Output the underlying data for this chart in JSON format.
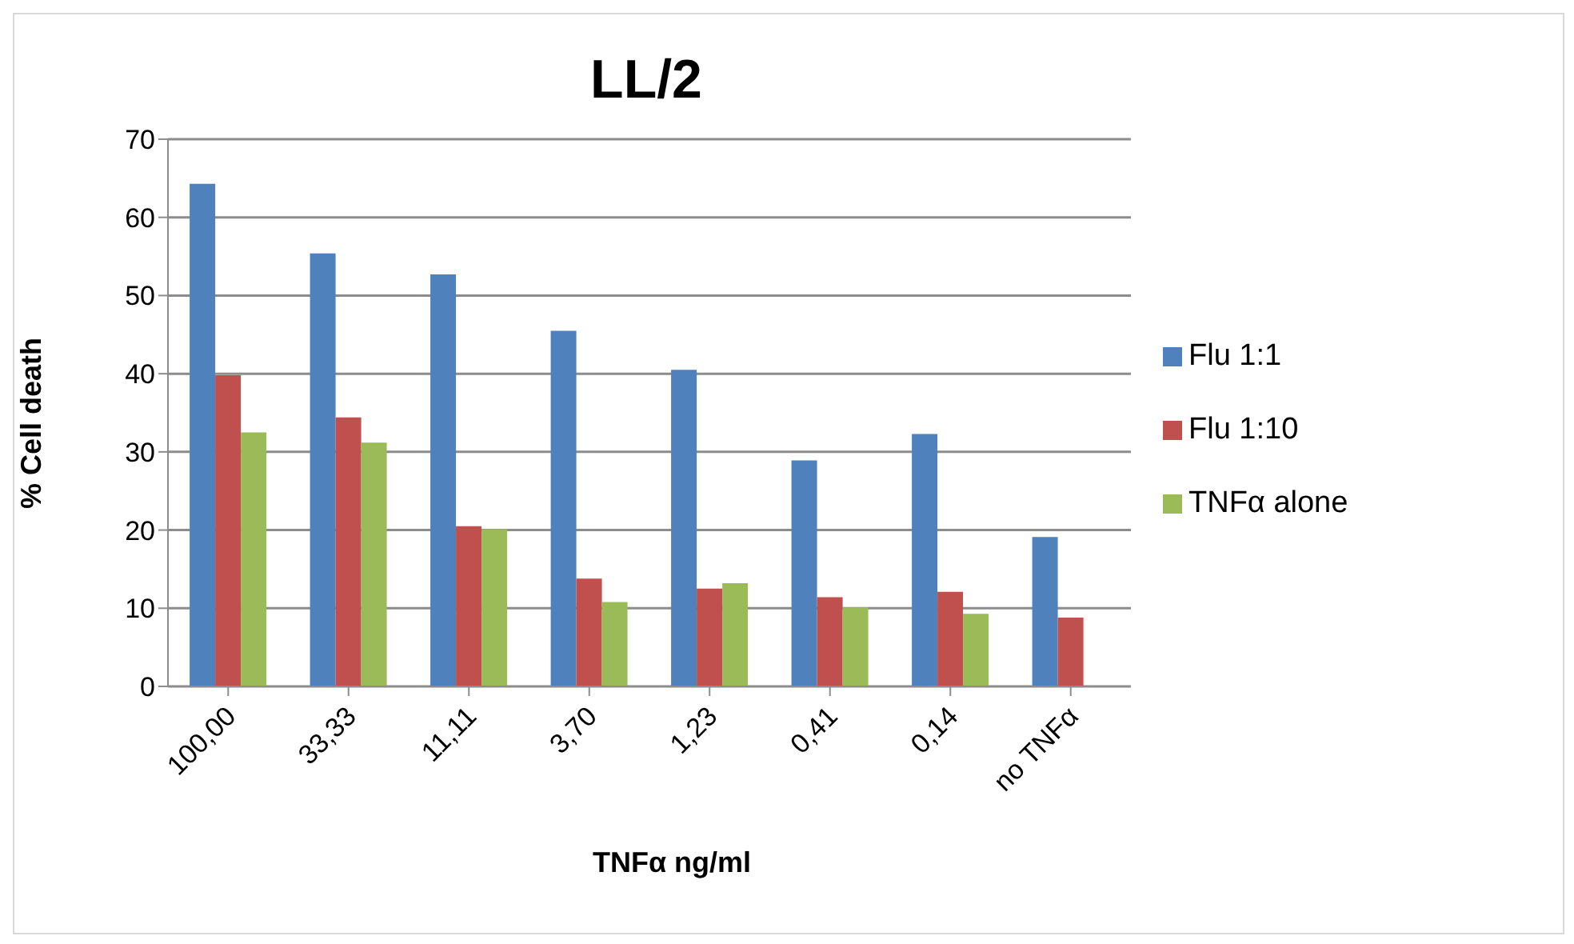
{
  "chart_data": {
    "type": "bar",
    "title": "LL/2",
    "xlabel": "TNFα ng/ml",
    "ylabel": "% Cell death",
    "categories": [
      "100,00",
      "33,33",
      "11,11",
      "3,70",
      "1,23",
      "0,41",
      "0,14",
      "no TNFα"
    ],
    "series": [
      {
        "name": "Flu 1:1",
        "color": "#4f81bd",
        "values": [
          64.3,
          55.4,
          52.7,
          45.5,
          40.5,
          28.9,
          32.3,
          19.1
        ]
      },
      {
        "name": "Flu 1:10",
        "color": "#c0504d",
        "values": [
          39.8,
          34.4,
          20.5,
          13.8,
          12.5,
          11.4,
          12.1,
          8.8
        ]
      },
      {
        "name": "TNFα alone",
        "color": "#9bbb59",
        "values": [
          32.5,
          31.2,
          20.1,
          10.8,
          13.2,
          10.1,
          9.3,
          null
        ]
      }
    ],
    "ylim": [
      0,
      70
    ],
    "yticks": [
      0,
      10,
      20,
      30,
      40,
      50,
      60,
      70
    ],
    "grid": "y",
    "legend": "right"
  }
}
